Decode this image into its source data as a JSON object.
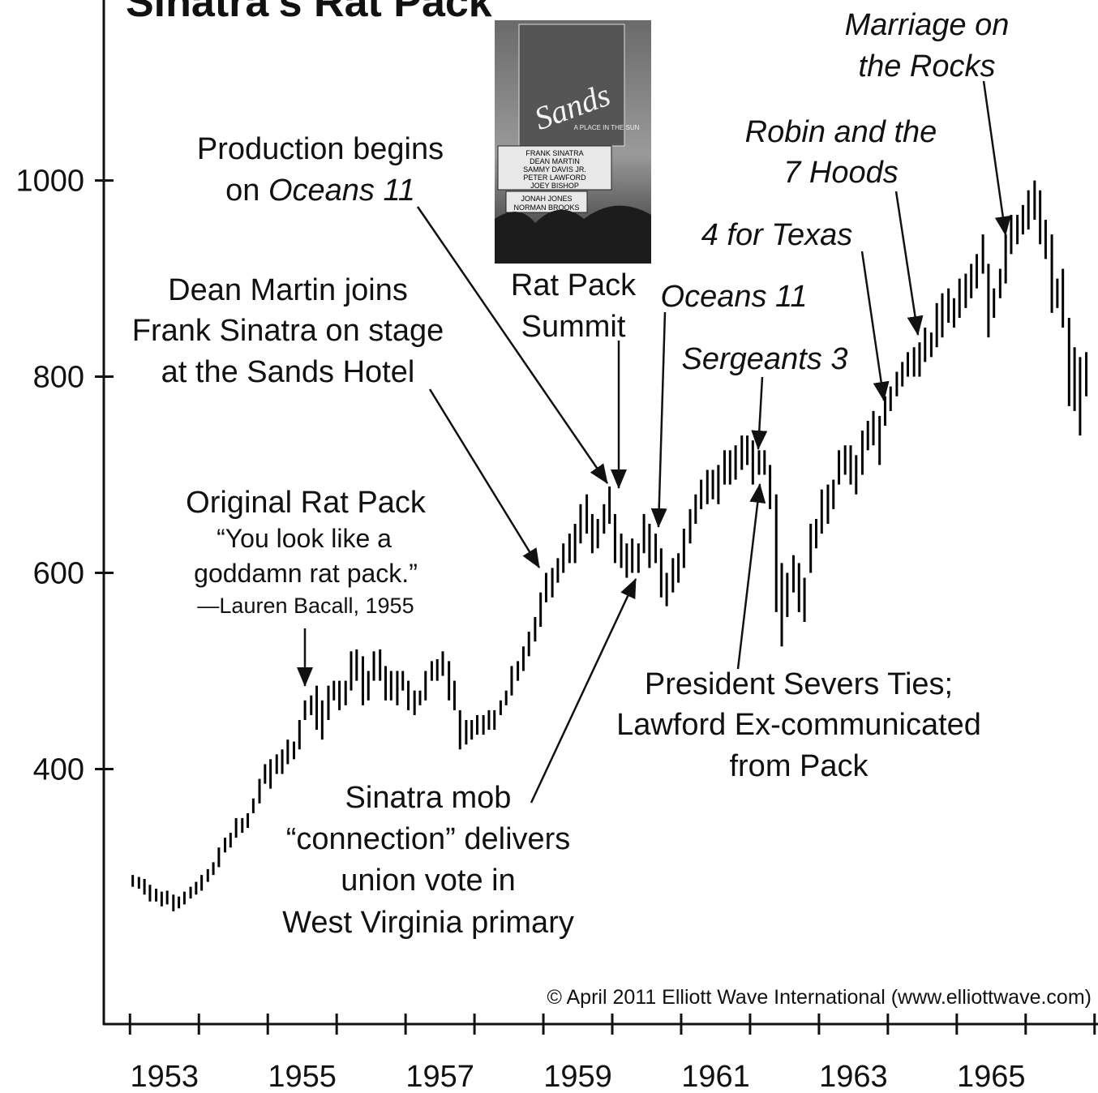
{
  "chart_data": {
    "type": "hilo",
    "title": "Sinatra's Rat Pack",
    "xlim": [
      1952.62,
      1967.05
    ],
    "ylim": [
      140,
      1184
    ],
    "xticks": [
      1953,
      1954,
      1955,
      1956,
      1957,
      1958,
      1959,
      1960,
      1961,
      1962,
      1963,
      1964,
      1965,
      1966,
      1967
    ],
    "xlabels": [
      1953,
      1955,
      1957,
      1959,
      1961,
      1963,
      1965
    ],
    "yticks": [
      400,
      600,
      800,
      1000
    ],
    "color": "#000000",
    "x": [
      1953.04,
      1953.13,
      1953.21,
      1953.29,
      1953.38,
      1953.46,
      1953.54,
      1953.63,
      1953.71,
      1953.79,
      1953.88,
      1953.96,
      1954.04,
      1954.13,
      1954.21,
      1954.29,
      1954.38,
      1954.46,
      1954.54,
      1954.63,
      1954.71,
      1954.79,
      1954.88,
      1954.96,
      1955.04,
      1955.13,
      1955.21,
      1955.29,
      1955.38,
      1955.46,
      1955.54,
      1955.63,
      1955.71,
      1955.79,
      1955.88,
      1955.96,
      1956.04,
      1956.13,
      1956.21,
      1956.29,
      1956.38,
      1956.46,
      1956.54,
      1956.63,
      1956.71,
      1956.79,
      1956.88,
      1956.96,
      1957.04,
      1957.13,
      1957.21,
      1957.29,
      1957.38,
      1957.46,
      1957.54,
      1957.63,
      1957.71,
      1957.79,
      1957.88,
      1957.96,
      1958.04,
      1958.13,
      1958.21,
      1958.29,
      1958.38,
      1958.46,
      1958.54,
      1958.63,
      1958.71,
      1958.79,
      1958.88,
      1958.96,
      1959.04,
      1959.13,
      1959.21,
      1959.29,
      1959.38,
      1959.46,
      1959.54,
      1959.63,
      1959.71,
      1959.79,
      1959.88,
      1959.96,
      1960.04,
      1960.13,
      1960.21,
      1960.29,
      1960.38,
      1960.46,
      1960.54,
      1960.63,
      1960.71,
      1960.79,
      1960.88,
      1960.96,
      1961.04,
      1961.13,
      1961.21,
      1961.29,
      1961.38,
      1961.46,
      1961.54,
      1961.63,
      1961.71,
      1961.79,
      1961.88,
      1961.96,
      1962.04,
      1962.13,
      1962.21,
      1962.29,
      1962.38,
      1962.46,
      1962.54,
      1962.63,
      1962.71,
      1962.79,
      1962.88,
      1962.96,
      1963.04,
      1963.13,
      1963.21,
      1963.29,
      1963.38,
      1963.46,
      1963.54,
      1963.63,
      1963.71,
      1963.79,
      1963.88,
      1963.96,
      1964.04,
      1964.13,
      1964.21,
      1964.29,
      1964.38,
      1964.46,
      1964.54,
      1964.63,
      1964.71,
      1964.79,
      1964.88,
      1964.96,
      1965.04,
      1965.13,
      1965.21,
      1965.29,
      1965.38,
      1965.46,
      1965.54,
      1965.63,
      1965.71,
      1965.79,
      1965.88,
      1965.96,
      1966.04,
      1966.13,
      1966.21,
      1966.29,
      1966.38,
      1966.46,
      1966.54,
      1966.63,
      1966.71,
      1966.79,
      1966.88
    ],
    "high": [
      292,
      290,
      288,
      282,
      278,
      275,
      276,
      272,
      270,
      275,
      280,
      285,
      292,
      298,
      305,
      320,
      330,
      335,
      350,
      350,
      355,
      370,
      390,
      405,
      410,
      415,
      420,
      430,
      428,
      450,
      470,
      475,
      485,
      470,
      485,
      490,
      490,
      490,
      520,
      522,
      515,
      500,
      520,
      522,
      505,
      500,
      500,
      500,
      490,
      480,
      480,
      500,
      510,
      512,
      520,
      510,
      490,
      460,
      450,
      450,
      455,
      455,
      460,
      460,
      470,
      480,
      505,
      510,
      525,
      540,
      555,
      580,
      600,
      605,
      615,
      630,
      640,
      650,
      670,
      680,
      660,
      655,
      670,
      688,
      660,
      640,
      630,
      635,
      630,
      660,
      650,
      640,
      625,
      600,
      615,
      620,
      645,
      665,
      680,
      695,
      705,
      705,
      710,
      725,
      725,
      730,
      740,
      740,
      735,
      725,
      725,
      710,
      680,
      610,
      600,
      618,
      610,
      595,
      650,
      655,
      685,
      690,
      695,
      725,
      730,
      730,
      720,
      745,
      755,
      765,
      760,
      780,
      790,
      805,
      815,
      825,
      830,
      835,
      850,
      845,
      875,
      885,
      890,
      880,
      900,
      905,
      915,
      925,
      945,
      915,
      890,
      910,
      945,
      965,
      965,
      975,
      990,
      1000,
      990,
      960,
      945,
      900,
      910,
      860,
      830,
      820,
      825
    ],
    "low": [
      280,
      278,
      272,
      265,
      265,
      260,
      262,
      255,
      258,
      262,
      268,
      272,
      276,
      285,
      292,
      300,
      315,
      320,
      330,
      335,
      340,
      355,
      365,
      385,
      380,
      395,
      395,
      405,
      410,
      420,
      450,
      455,
      440,
      430,
      450,
      470,
      460,
      465,
      480,
      490,
      465,
      470,
      490,
      490,
      470,
      470,
      465,
      480,
      460,
      455,
      465,
      470,
      490,
      490,
      495,
      470,
      460,
      420,
      425,
      430,
      435,
      435,
      440,
      440,
      455,
      465,
      475,
      490,
      500,
      515,
      530,
      545,
      570,
      575,
      590,
      600,
      610,
      610,
      630,
      640,
      620,
      625,
      640,
      650,
      610,
      605,
      595,
      600,
      600,
      620,
      605,
      610,
      575,
      566,
      580,
      590,
      605,
      630,
      650,
      665,
      670,
      675,
      670,
      690,
      690,
      695,
      705,
      710,
      690,
      700,
      700,
      665,
      560,
      525,
      555,
      580,
      560,
      550,
      600,
      625,
      640,
      650,
      665,
      690,
      700,
      690,
      680,
      700,
      725,
      730,
      710,
      750,
      765,
      780,
      790,
      800,
      800,
      800,
      815,
      820,
      830,
      840,
      855,
      850,
      860,
      870,
      880,
      890,
      905,
      840,
      860,
      880,
      895,
      925,
      935,
      945,
      950,
      960,
      935,
      920,
      865,
      870,
      850,
      770,
      765,
      740,
      780
    ],
    "annotations": [
      [
        "Original Rat Pack",
        "“You look like a",
        "goddamn rat pack.”",
        "—Lauren Bacall, 1955"
      ],
      [
        "Dean Martin joins",
        "Frank Sinatra on stage",
        "at the Sands Hotel"
      ],
      [
        "Production begins",
        "on",
        "Oceans 11"
      ],
      [
        "Rat Pack",
        "Summit"
      ],
      [
        "Oceans 11"
      ],
      [
        "Sergeants 3"
      ],
      [
        "4 for Texas"
      ],
      [
        "Robin and the",
        "7 Hoods"
      ],
      [
        "Marriage on",
        "the Rocks"
      ],
      [
        "President Severs Ties;",
        "Lawford Ex-communicated",
        "from Pack"
      ],
      [
        "Sinatra mob",
        "“connection” delivers",
        "union vote in",
        "West Virginia primary"
      ]
    ],
    "credit": "© April 2011 Elliott Wave International (www.elliottwave.com)",
    "photo": {
      "sign": "Sands",
      "tagline": "A PLACE IN THE SUN",
      "marquee": [
        "FRANK  SINATRA",
        "DEAN  MARTIN",
        "SAMMY  DAVIS JR.",
        "PETER  LAWFORD",
        "JOEY  BISHOP"
      ],
      "marquee2": [
        "JONAH  JONES",
        "NORMAN  BROOKS"
      ]
    }
  }
}
